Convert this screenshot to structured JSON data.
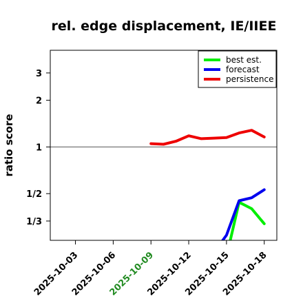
{
  "chart_data": {
    "type": "line",
    "title": "rel. edge displacement, IE/IIEE",
    "xlabel": "",
    "ylabel": "ratio score",
    "x_dates": [
      "2025-10-09",
      "2025-10-10",
      "2025-10-11",
      "2025-10-12",
      "2025-10-13",
      "2025-10-14",
      "2025-10-15",
      "2025-10-16",
      "2025-10-17",
      "2025-10-18"
    ],
    "x_ticks": [
      {
        "date": "2025-10-03",
        "label": "2025-10-03",
        "color": "#000000"
      },
      {
        "date": "2025-10-06",
        "label": "2025-10-06",
        "color": "#000000"
      },
      {
        "date": "2025-10-09",
        "label": "2025-10-09",
        "color": "#228b22"
      },
      {
        "date": "2025-10-12",
        "label": "2025-10-12",
        "color": "#000000"
      },
      {
        "date": "2025-10-15",
        "label": "2025-10-15",
        "color": "#000000"
      },
      {
        "date": "2025-10-18",
        "label": "2025-10-18",
        "color": "#000000"
      }
    ],
    "xlim": [
      "2025-10-01",
      "2025-10-19"
    ],
    "y_scale": "log",
    "y_ticks": [
      {
        "value": 0.333,
        "label": "1/3"
      },
      {
        "value": 0.5,
        "label": "1/2"
      },
      {
        "value": 1,
        "label": "1"
      },
      {
        "value": 2,
        "label": "2"
      },
      {
        "value": 3,
        "label": "3"
      }
    ],
    "ylim": [
      0.25,
      4.2
    ],
    "reference_line": 1,
    "grid": false,
    "legend_position": "top-right",
    "series": [
      {
        "name": "best est.",
        "color": "#00ee00",
        "points": [
          [
            "2025-10-15.3",
            0.25
          ],
          [
            "2025-10-16",
            0.44
          ],
          [
            "2025-10-17",
            0.4
          ],
          [
            "2025-10-18",
            0.32
          ]
        ]
      },
      {
        "name": "forecast",
        "color": "#0000ee",
        "points": [
          [
            "2025-10-14.7",
            0.25
          ],
          [
            "2025-10-15",
            0.27
          ],
          [
            "2025-10-16",
            0.45
          ],
          [
            "2025-10-17",
            0.47
          ],
          [
            "2025-10-18",
            0.53
          ]
        ]
      },
      {
        "name": "persistence",
        "color": "#ee0000",
        "points": [
          [
            "2025-10-09",
            1.05
          ],
          [
            "2025-10-10",
            1.04
          ],
          [
            "2025-10-11",
            1.09
          ],
          [
            "2025-10-12",
            1.18
          ],
          [
            "2025-10-13",
            1.13
          ],
          [
            "2025-10-14",
            1.14
          ],
          [
            "2025-10-15",
            1.15
          ],
          [
            "2025-10-16",
            1.23
          ],
          [
            "2025-10-17",
            1.28
          ],
          [
            "2025-10-18",
            1.16
          ]
        ]
      }
    ]
  }
}
